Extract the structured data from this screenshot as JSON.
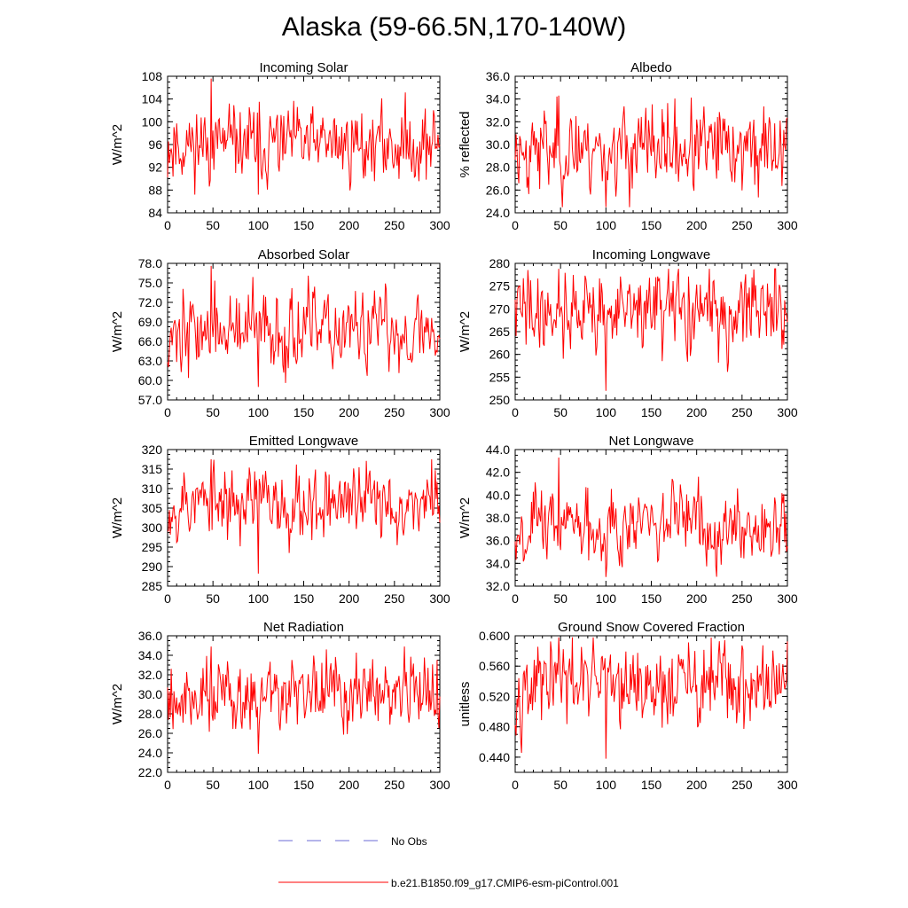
{
  "page_title": "Alaska (59-66.5N,170-140W)",
  "colors": {
    "series": "#ff0000",
    "obs": "#6b6bd6",
    "axis": "#000000"
  },
  "legend": {
    "obs_label": "No Obs",
    "model_label": "b.e21.B1850.f09_g17.CMIP6-esm-piControl.001"
  },
  "chart_data": [
    {
      "type": "line",
      "title": "Incoming Solar",
      "ylabel": "W/m^2",
      "xlim": [
        0,
        300
      ],
      "ylim": [
        84,
        108
      ],
      "xticks": [
        "0",
        "50",
        "100",
        "150",
        "200",
        "250",
        "300"
      ],
      "yticks": [
        "84",
        "88",
        "92",
        "96",
        "100",
        "104",
        "108"
      ],
      "series": [
        {
          "mean": 96.0,
          "sd": 3.2,
          "min": 87.2,
          "max": 107.6,
          "seed": 11
        }
      ]
    },
    {
      "type": "line",
      "title": "Albedo",
      "ylabel": "% reflected",
      "xlim": [
        0,
        300
      ],
      "ylim": [
        24,
        36
      ],
      "xticks": [
        "0",
        "50",
        "100",
        "150",
        "200",
        "250",
        "300"
      ],
      "yticks": [
        "24.0",
        "26.0",
        "28.0",
        "30.0",
        "32.0",
        "34.0",
        "36.0"
      ],
      "series": [
        {
          "mean": 29.6,
          "sd": 1.8,
          "min": 24.5,
          "max": 34.3,
          "seed": 23
        }
      ]
    },
    {
      "type": "line",
      "title": "Absorbed Solar",
      "ylabel": "W/m^2",
      "xlim": [
        0,
        300
      ],
      "ylim": [
        57,
        78
      ],
      "xticks": [
        "0",
        "50",
        "100",
        "150",
        "200",
        "250",
        "300"
      ],
      "yticks": [
        "57.0",
        "60.0",
        "63.0",
        "66.0",
        "69.0",
        "72.0",
        "75.0",
        "78.0"
      ],
      "series": [
        {
          "mean": 67.5,
          "sd": 3.0,
          "min": 59.0,
          "max": 77.6,
          "seed": 37
        }
      ]
    },
    {
      "type": "line",
      "title": "Incoming Longwave",
      "ylabel": "W/m^2",
      "xlim": [
        0,
        300
      ],
      "ylim": [
        250,
        280
      ],
      "xticks": [
        "0",
        "50",
        "100",
        "150",
        "200",
        "250",
        "300"
      ],
      "yticks": [
        "250",
        "255",
        "260",
        "265",
        "270",
        "275",
        "280"
      ],
      "series": [
        {
          "mean": 269.5,
          "sd": 4.5,
          "min": 252.0,
          "max": 278.8,
          "seed": 41
        }
      ]
    },
    {
      "type": "line",
      "title": "Emitted Longwave",
      "ylabel": "W/m^2",
      "xlim": [
        0,
        300
      ],
      "ylim": [
        285,
        320
      ],
      "xticks": [
        "0",
        "50",
        "100",
        "150",
        "200",
        "250",
        "300"
      ],
      "yticks": [
        "285",
        "290",
        "295",
        "300",
        "305",
        "310",
        "315",
        "320"
      ],
      "series": [
        {
          "mean": 306.5,
          "sd": 4.8,
          "min": 288.2,
          "max": 317.5,
          "seed": 53
        }
      ]
    },
    {
      "type": "line",
      "title": "Net Longwave",
      "ylabel": "W/m^2",
      "xlim": [
        0,
        300
      ],
      "ylim": [
        32,
        44
      ],
      "xticks": [
        "0",
        "50",
        "100",
        "150",
        "200",
        "250",
        "300"
      ],
      "yticks": [
        "32.0",
        "34.0",
        "36.0",
        "38.0",
        "40.0",
        "42.0",
        "44.0"
      ],
      "series": [
        {
          "mean": 37.4,
          "sd": 1.6,
          "min": 32.8,
          "max": 43.3,
          "seed": 67
        }
      ]
    },
    {
      "type": "line",
      "title": "Net Radiation",
      "ylabel": "W/m^2",
      "xlim": [
        0,
        300
      ],
      "ylim": [
        22,
        36
      ],
      "xticks": [
        "0",
        "50",
        "100",
        "150",
        "200",
        "250",
        "300"
      ],
      "yticks": [
        "22.0",
        "24.0",
        "26.0",
        "28.0",
        "30.0",
        "32.0",
        "34.0",
        "36.0"
      ],
      "series": [
        {
          "mean": 30.0,
          "sd": 1.9,
          "min": 23.9,
          "max": 34.9,
          "seed": 79
        }
      ]
    },
    {
      "type": "line",
      "title": "Ground Snow Covered Fraction",
      "ylabel": "unitless",
      "xlim": [
        0,
        300
      ],
      "ylim": [
        0.42,
        0.6
      ],
      "xticks": [
        "0",
        "50",
        "100",
        "150",
        "200",
        "250",
        "300"
      ],
      "yticks": [
        "0.440",
        "0.480",
        "0.520",
        "0.560",
        "0.600"
      ],
      "series": [
        {
          "mean": 0.535,
          "sd": 0.027,
          "min": 0.438,
          "max": 0.598,
          "seed": 97
        }
      ]
    }
  ]
}
